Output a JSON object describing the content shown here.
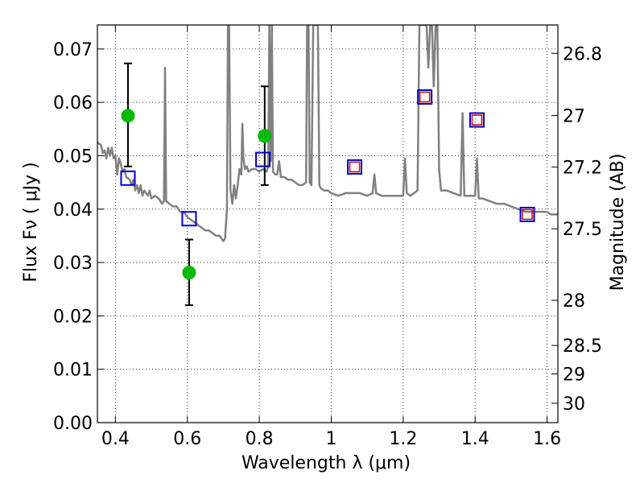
{
  "chart_data": {
    "type": "scatter",
    "xlabel": "Wavelength  λ (μm)",
    "ylabel": "Flux  Fν  ( μJy )",
    "y2label": "Magnitude (AB)",
    "xlim": [
      0.35,
      1.63
    ],
    "ylim": [
      0.0,
      0.0745
    ],
    "grid": true,
    "x_ticks": [
      {
        "value": 0.4,
        "label": "0.4"
      },
      {
        "value": 0.6,
        "label": "0.6"
      },
      {
        "value": 0.8,
        "label": "0.8"
      },
      {
        "value": 1.0,
        "label": "1"
      },
      {
        "value": 1.2,
        "label": "1.2"
      },
      {
        "value": 1.4,
        "label": "1.4"
      },
      {
        "value": 1.6,
        "label": "1.6"
      }
    ],
    "y_ticks": [
      {
        "value": 0.0,
        "label": "0.00"
      },
      {
        "value": 0.01,
        "label": "0.01"
      },
      {
        "value": 0.02,
        "label": "0.02"
      },
      {
        "value": 0.03,
        "label": "0.03"
      },
      {
        "value": 0.04,
        "label": "0.04"
      },
      {
        "value": 0.05,
        "label": "0.05"
      },
      {
        "value": 0.06,
        "label": "0.06"
      },
      {
        "value": 0.07,
        "label": "0.07"
      }
    ],
    "y2_ticks": [
      {
        "value": 26.8,
        "label": "26.8"
      },
      {
        "value": 27.0,
        "label": "27"
      },
      {
        "value": 27.2,
        "label": "27.2"
      },
      {
        "value": 27.5,
        "label": "27.5"
      },
      {
        "value": 28.0,
        "label": "28"
      },
      {
        "value": 28.5,
        "label": "28.5"
      },
      {
        "value": 29.0,
        "label": "29"
      },
      {
        "value": 30.0,
        "label": "30"
      }
    ],
    "series": [
      {
        "kind": "line",
        "color": "#808080",
        "points": [
          [
            0.35,
            0.0525
          ],
          [
            0.36,
            0.052
          ],
          [
            0.365,
            0.0505
          ],
          [
            0.37,
            0.051
          ],
          [
            0.375,
            0.0495
          ],
          [
            0.38,
            0.0515
          ],
          [
            0.385,
            0.05
          ],
          [
            0.39,
            0.0515
          ],
          [
            0.395,
            0.0495
          ],
          [
            0.4,
            0.05
          ],
          [
            0.405,
            0.0465
          ],
          [
            0.41,
            0.0495
          ],
          [
            0.415,
            0.0485
          ],
          [
            0.42,
            0.047
          ],
          [
            0.425,
            0.0475
          ],
          [
            0.43,
            0.046
          ],
          [
            0.44,
            0.0455
          ],
          [
            0.445,
            0.0445
          ],
          [
            0.45,
            0.0455
          ],
          [
            0.455,
            0.0435
          ],
          [
            0.46,
            0.0445
          ],
          [
            0.465,
            0.043
          ],
          [
            0.47,
            0.0445
          ],
          [
            0.475,
            0.0425
          ],
          [
            0.48,
            0.0435
          ],
          [
            0.49,
            0.0425
          ],
          [
            0.495,
            0.0435
          ],
          [
            0.5,
            0.042
          ],
          [
            0.51,
            0.0425
          ],
          [
            0.52,
            0.042
          ],
          [
            0.53,
            0.041
          ],
          [
            0.535,
            0.0415
          ],
          [
            0.538,
            0.0665
          ],
          [
            0.541,
            0.0415
          ],
          [
            0.55,
            0.041
          ],
          [
            0.56,
            0.0405
          ],
          [
            0.57,
            0.0405
          ],
          [
            0.58,
            0.0395
          ],
          [
            0.59,
            0.0395
          ],
          [
            0.6,
            0.0385
          ],
          [
            0.61,
            0.038
          ],
          [
            0.62,
            0.0375
          ],
          [
            0.63,
            0.037
          ],
          [
            0.64,
            0.0365
          ],
          [
            0.65,
            0.036
          ],
          [
            0.66,
            0.036
          ],
          [
            0.67,
            0.0355
          ],
          [
            0.68,
            0.035
          ],
          [
            0.69,
            0.035
          ],
          [
            0.695,
            0.0345
          ],
          [
            0.7,
            0.034
          ],
          [
            0.705,
            0.0345
          ],
          [
            0.71,
            0.04
          ],
          [
            0.713,
            0.0745
          ],
          [
            0.716,
            0.0745
          ],
          [
            0.72,
            0.0435
          ],
          [
            0.725,
            0.041
          ],
          [
            0.73,
            0.0445
          ],
          [
            0.735,
            0.042
          ],
          [
            0.74,
            0.0445
          ],
          [
            0.745,
            0.0475
          ],
          [
            0.75,
            0.0465
          ],
          [
            0.753,
            0.056
          ],
          [
            0.756,
            0.0495
          ],
          [
            0.76,
            0.0475
          ],
          [
            0.765,
            0.048
          ],
          [
            0.77,
            0.047
          ],
          [
            0.78,
            0.0475
          ],
          [
            0.79,
            0.0475
          ],
          [
            0.8,
            0.047
          ],
          [
            0.81,
            0.0475
          ],
          [
            0.82,
            0.047
          ],
          [
            0.825,
            0.048
          ],
          [
            0.828,
            0.0745
          ],
          [
            0.832,
            0.049
          ],
          [
            0.835,
            0.0745
          ],
          [
            0.838,
            0.047
          ],
          [
            0.845,
            0.0465
          ],
          [
            0.85,
            0.0465
          ],
          [
            0.855,
            0.049
          ],
          [
            0.86,
            0.046
          ],
          [
            0.87,
            0.046
          ],
          [
            0.88,
            0.0455
          ],
          [
            0.89,
            0.0455
          ],
          [
            0.9,
            0.045
          ],
          [
            0.91,
            0.0445
          ],
          [
            0.92,
            0.0445
          ],
          [
            0.93,
            0.045
          ],
          [
            0.933,
            0.0745
          ],
          [
            0.937,
            0.0745
          ],
          [
            0.94,
            0.045
          ],
          [
            0.945,
            0.0445
          ],
          [
            0.95,
            0.0745
          ],
          [
            0.955,
            0.0745
          ],
          [
            0.96,
            0.0745
          ],
          [
            0.963,
            0.0745
          ],
          [
            0.967,
            0.0445
          ],
          [
            0.97,
            0.044
          ],
          [
            0.98,
            0.0435
          ],
          [
            0.99,
            0.0435
          ],
          [
            1.0,
            0.043
          ],
          [
            1.02,
            0.0425
          ],
          [
            1.04,
            0.043
          ],
          [
            1.06,
            0.043
          ],
          [
            1.08,
            0.043
          ],
          [
            1.1,
            0.0425
          ],
          [
            1.115,
            0.043
          ],
          [
            1.12,
            0.0465
          ],
          [
            1.125,
            0.043
          ],
          [
            1.14,
            0.0425
          ],
          [
            1.16,
            0.0425
          ],
          [
            1.18,
            0.0425
          ],
          [
            1.2,
            0.0425
          ],
          [
            1.205,
            0.0495
          ],
          [
            1.21,
            0.043
          ],
          [
            1.22,
            0.0425
          ],
          [
            1.24,
            0.0435
          ],
          [
            1.245,
            0.0745
          ],
          [
            1.255,
            0.0745
          ],
          [
            1.26,
            0.0745
          ],
          [
            1.265,
            0.0745
          ],
          [
            1.27,
            0.0665
          ],
          [
            1.275,
            0.0745
          ],
          [
            1.28,
            0.0745
          ],
          [
            1.285,
            0.063
          ],
          [
            1.29,
            0.0745
          ],
          [
            1.295,
            0.0745
          ],
          [
            1.3,
            0.0475
          ],
          [
            1.305,
            0.0435
          ],
          [
            1.32,
            0.0435
          ],
          [
            1.34,
            0.043
          ],
          [
            1.36,
            0.0425
          ],
          [
            1.365,
            0.058
          ],
          [
            1.37,
            0.0425
          ],
          [
            1.38,
            0.0425
          ],
          [
            1.4,
            0.0425
          ],
          [
            1.405,
            0.0495
          ],
          [
            1.41,
            0.042
          ],
          [
            1.42,
            0.042
          ],
          [
            1.44,
            0.0415
          ],
          [
            1.46,
            0.041
          ],
          [
            1.48,
            0.041
          ],
          [
            1.5,
            0.0405
          ],
          [
            1.52,
            0.04
          ],
          [
            1.54,
            0.0395
          ],
          [
            1.56,
            0.0395
          ],
          [
            1.58,
            0.0395
          ],
          [
            1.6,
            0.0395
          ],
          [
            1.61,
            0.039
          ],
          [
            1.63,
            0.039
          ]
        ]
      },
      {
        "kind": "errorbar",
        "marker": "circle",
        "color": "#00bb00",
        "points": [
          {
            "x": 0.435,
            "y": 0.0575,
            "yerr_low": 0.048,
            "yerr_high": 0.0673
          },
          {
            "x": 0.605,
            "y": 0.0281,
            "yerr_low": 0.022,
            "yerr_high": 0.0343
          },
          {
            "x": 0.815,
            "y": 0.0537,
            "yerr_low": 0.0445,
            "yerr_high": 0.063
          }
        ]
      },
      {
        "kind": "scatter",
        "marker": "square",
        "color": "#0000cc",
        "points": [
          [
            0.435,
            0.0458
          ],
          [
            0.605,
            0.0382
          ],
          [
            0.81,
            0.0493
          ],
          [
            1.065,
            0.0479
          ],
          [
            1.26,
            0.061
          ],
          [
            1.405,
            0.0567
          ],
          [
            1.545,
            0.039
          ]
        ]
      },
      {
        "kind": "scatter",
        "marker": "square",
        "color": "#dd0000",
        "points": [
          [
            1.065,
            0.0479
          ],
          [
            1.26,
            0.061
          ],
          [
            1.405,
            0.0567
          ],
          [
            1.545,
            0.039
          ]
        ]
      }
    ]
  }
}
